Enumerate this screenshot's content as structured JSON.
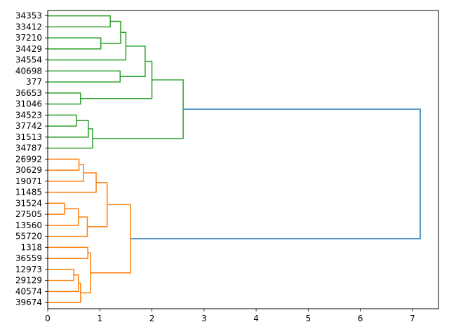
{
  "chart_data": {
    "type": "dendrogram",
    "orientation": "horizontal",
    "xlim": [
      0,
      7.5
    ],
    "x_ticks": [
      "0",
      "1",
      "2",
      "3",
      "4",
      "5",
      "6",
      "7"
    ],
    "leaves": [
      "34353",
      "33412",
      "37210",
      "34429",
      "34554",
      "40698",
      "377",
      "36653",
      "31046",
      "34523",
      "37742",
      "31513",
      "34787",
      "26992",
      "30629",
      "19071",
      "11485",
      "31524",
      "27505",
      "13560",
      "55720",
      "1318",
      "36559",
      "12973",
      "29129",
      "40574",
      "39674"
    ],
    "colors": {
      "cluster_1": "#2ca02c",
      "cluster_2": "#ff7f0e",
      "above_threshold": "#1f77b4"
    },
    "links": [
      {
        "child_a": "34353",
        "child_b": "33412",
        "height": 1.2,
        "color": "cluster_1"
      },
      {
        "child_a": "37210",
        "child_b": "34429",
        "height": 1.02,
        "color": "cluster_1"
      },
      {
        "child_a": "34353+33412",
        "child_b": "37210+34429",
        "height": 1.4,
        "color": "cluster_1"
      },
      {
        "child_a": "34353..34429",
        "child_b": "34554",
        "height": 1.5,
        "color": "cluster_1"
      },
      {
        "child_a": "40698",
        "child_b": "377",
        "height": 1.39,
        "color": "cluster_1"
      },
      {
        "child_a": "34353..34554",
        "child_b": "40698+377",
        "height": 1.87,
        "color": "cluster_1"
      },
      {
        "child_a": "36653",
        "child_b": "31046",
        "height": 0.63,
        "color": "cluster_1"
      },
      {
        "child_a": "34353..377",
        "child_b": "36653+31046",
        "height": 2.0,
        "color": "cluster_1"
      },
      {
        "child_a": "34523",
        "child_b": "37742",
        "height": 0.55,
        "color": "cluster_1"
      },
      {
        "child_a": "34523+37742",
        "child_b": "31513",
        "height": 0.78,
        "color": "cluster_1"
      },
      {
        "child_a": "34523..31513",
        "child_b": "34787",
        "height": 0.86,
        "color": "cluster_1"
      },
      {
        "child_a": "34353..31046",
        "child_b": "34523..34787",
        "height": 2.6,
        "color": "cluster_1"
      },
      {
        "child_a": "26992",
        "child_b": "30629",
        "height": 0.6,
        "color": "cluster_2"
      },
      {
        "child_a": "26992+30629",
        "child_b": "19071",
        "height": 0.69,
        "color": "cluster_2"
      },
      {
        "child_a": "26992..19071",
        "child_b": "11485",
        "height": 0.93,
        "color": "cluster_2"
      },
      {
        "child_a": "31524",
        "child_b": "27505",
        "height": 0.32,
        "color": "cluster_2"
      },
      {
        "child_a": "31524+27505",
        "child_b": "13560",
        "height": 0.59,
        "color": "cluster_2"
      },
      {
        "child_a": "31524..13560",
        "child_b": "55720",
        "height": 0.76,
        "color": "cluster_2"
      },
      {
        "child_a": "26992..11485",
        "child_b": "31524..55720",
        "height": 1.14,
        "color": "cluster_2"
      },
      {
        "child_a": "1318",
        "child_b": "36559",
        "height": 0.77,
        "color": "cluster_2"
      },
      {
        "child_a": "12973",
        "child_b": "29129",
        "height": 0.5,
        "color": "cluster_2"
      },
      {
        "child_a": "12973+29129",
        "child_b": "40574",
        "height": 0.59,
        "color": "cluster_2"
      },
      {
        "child_a": "12973..40574",
        "child_b": "39674",
        "height": 0.63,
        "color": "cluster_2"
      },
      {
        "child_a": "1318+36559",
        "child_b": "12973..39674",
        "height": 0.82,
        "color": "cluster_2"
      },
      {
        "child_a": "26992..55720",
        "child_b": "1318..39674",
        "height": 1.59,
        "color": "cluster_2"
      },
      {
        "child_a": "34353..34787",
        "child_b": "26992..39674",
        "height": 7.15,
        "color": "above_threshold"
      }
    ]
  }
}
